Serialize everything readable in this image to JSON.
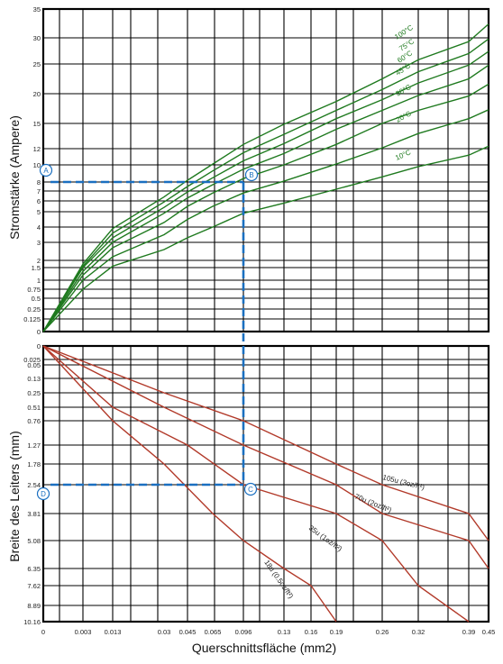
{
  "chart_data": [
    {
      "type": "line",
      "panel": "top",
      "ylabel": "Stromstärke (Ampere)",
      "y_ticks": [
        "35",
        "30",
        "25",
        "20",
        "15",
        "12",
        "10",
        "8",
        "7",
        "6",
        "5",
        "4",
        "3",
        "2",
        "1.5",
        "1",
        "0.75",
        "0.5",
        "0.25",
        "0.125",
        "0"
      ],
      "x_ticks": [
        "0",
        "0.003",
        "0.013",
        "0.03",
        "0.045",
        "0.065",
        "0.096",
        "0.13",
        "0.19",
        "0.26",
        "0.32",
        "0.39",
        "0.45"
      ],
      "series": [
        {
          "name": "10°C",
          "color": "#1f7a1f",
          "points": [
            [
              0,
              0
            ],
            [
              0.003,
              0.75
            ],
            [
              0.013,
              1.6
            ],
            [
              0.03,
              2.6
            ],
            [
              0.045,
              3.3
            ],
            [
              0.065,
              4.0
            ],
            [
              0.096,
              4.9
            ],
            [
              0.13,
              5.8
            ],
            [
              0.19,
              7.2
            ],
            [
              0.26,
              8.6
            ],
            [
              0.32,
              9.8
            ],
            [
              0.39,
              11.2
            ],
            [
              0.45,
              12.3
            ]
          ]
        },
        {
          "name": "20°C",
          "color": "#1f7a1f",
          "points": [
            [
              0,
              0
            ],
            [
              0.003,
              1.0
            ],
            [
              0.013,
              2.2
            ],
            [
              0.03,
              3.5
            ],
            [
              0.045,
              4.5
            ],
            [
              0.065,
              5.5
            ],
            [
              0.096,
              6.8
            ],
            [
              0.13,
              8.1
            ],
            [
              0.19,
              10.1
            ],
            [
              0.26,
              12.1
            ],
            [
              0.32,
              13.8
            ],
            [
              0.39,
              15.8
            ],
            [
              0.45,
              17.3
            ]
          ]
        },
        {
          "name": "30°C",
          "color": "#1f7a1f",
          "points": [
            [
              0,
              0
            ],
            [
              0.003,
              1.2
            ],
            [
              0.013,
              2.7
            ],
            [
              0.03,
              4.3
            ],
            [
              0.045,
              5.5
            ],
            [
              0.065,
              6.8
            ],
            [
              0.096,
              8.4
            ],
            [
              0.13,
              10.0
            ],
            [
              0.19,
              12.5
            ],
            [
              0.26,
              15.0
            ],
            [
              0.32,
              17.2
            ],
            [
              0.39,
              19.6
            ],
            [
              0.45,
              21.6
            ]
          ]
        },
        {
          "name": "45°C",
          "color": "#1f7a1f",
          "points": [
            [
              0,
              0
            ],
            [
              0.003,
              1.35
            ],
            [
              0.013,
              3.0
            ],
            [
              0.03,
              4.9
            ],
            [
              0.045,
              6.3
            ],
            [
              0.065,
              7.7
            ],
            [
              0.096,
              9.5
            ],
            [
              0.13,
              11.4
            ],
            [
              0.19,
              14.3
            ],
            [
              0.26,
              17.2
            ],
            [
              0.32,
              19.7
            ],
            [
              0.39,
              22.5
            ],
            [
              0.45,
              24.8
            ]
          ]
        },
        {
          "name": "60°C",
          "color": "#1f7a1f",
          "points": [
            [
              0,
              0
            ],
            [
              0.003,
              1.5
            ],
            [
              0.013,
              3.3
            ],
            [
              0.03,
              5.4
            ],
            [
              0.045,
              6.9
            ],
            [
              0.065,
              8.5
            ],
            [
              0.096,
              10.5
            ],
            [
              0.13,
              12.6
            ],
            [
              0.19,
              15.8
            ],
            [
              0.26,
              19.0
            ],
            [
              0.32,
              21.8
            ],
            [
              0.39,
              24.8
            ],
            [
              0.45,
              27.4
            ]
          ]
        },
        {
          "name": "75°C",
          "color": "#1f7a1f",
          "points": [
            [
              0,
              0
            ],
            [
              0.003,
              1.6
            ],
            [
              0.013,
              3.6
            ],
            [
              0.03,
              5.9
            ],
            [
              0.045,
              7.5
            ],
            [
              0.065,
              9.3
            ],
            [
              0.096,
              11.5
            ],
            [
              0.13,
              13.7
            ],
            [
              0.19,
              17.2
            ],
            [
              0.26,
              20.7
            ],
            [
              0.32,
              23.7
            ],
            [
              0.39,
              27.0
            ],
            [
              0.45,
              29.8
            ]
          ]
        },
        {
          "name": "100°C",
          "color": "#1f7a1f",
          "points": [
            [
              0,
              0
            ],
            [
              0.003,
              1.75
            ],
            [
              0.013,
              3.9
            ],
            [
              0.03,
              6.4
            ],
            [
              0.045,
              8.2
            ],
            [
              0.065,
              10.1
            ],
            [
              0.096,
              12.5
            ],
            [
              0.13,
              14.9
            ],
            [
              0.19,
              18.7
            ],
            [
              0.26,
              22.5
            ],
            [
              0.32,
              25.8
            ],
            [
              0.39,
              29.3
            ],
            [
              0.45,
              32.4
            ]
          ]
        }
      ],
      "curve_labels": [
        "100°C",
        "75°C",
        "60°C",
        "45°C",
        "30°C",
        "20°C",
        "10°C"
      ]
    },
    {
      "type": "line",
      "panel": "bottom",
      "xlabel": "Querschnittsfläche (mm2)",
      "ylabel": "Breite des Leiters (mm)",
      "y_ticks": [
        "0",
        "0.025",
        "0.05",
        "0.13",
        "0.25",
        "0.51",
        "0.76",
        "1.27",
        "1.78",
        "2.54",
        "3.81",
        "5.08",
        "6.35",
        "7.62",
        "8.89",
        "10.16"
      ],
      "x_ticks": [
        "0",
        "0.003",
        "0.013",
        "0.03",
        "0.045",
        "0.065",
        "0.096",
        "0.13",
        "0.16",
        "0.19",
        "0.26",
        "0.32",
        "0.39",
        "0.45"
      ],
      "series": [
        {
          "name": "18u (0.5oz/ft²)",
          "color": "#b23a2a",
          "points": [
            [
              0,
              0
            ],
            [
              0.013,
              0.76
            ],
            [
              0.03,
              1.78
            ],
            [
              0.065,
              3.81
            ],
            [
              0.096,
              5.08
            ],
            [
              0.13,
              6.35
            ],
            [
              0.16,
              7.62
            ],
            [
              0.19,
              10.16
            ]
          ]
        },
        {
          "name": "35u (1oz/ft²)",
          "color": "#b23a2a",
          "points": [
            [
              0,
              0
            ],
            [
              0.013,
              0.51
            ],
            [
              0.045,
              1.27
            ],
            [
              0.096,
              2.54
            ],
            [
              0.19,
              3.81
            ],
            [
              0.26,
              5.08
            ],
            [
              0.32,
              7.62
            ],
            [
              0.39,
              10.16
            ]
          ]
        },
        {
          "name": "70u (2oz/ft²)",
          "color": "#b23a2a",
          "points": [
            [
              0,
              0
            ],
            [
              0.03,
              0.51
            ],
            [
              0.096,
              1.27
            ],
            [
              0.19,
              2.54
            ],
            [
              0.26,
              3.81
            ],
            [
              0.39,
              5.08
            ],
            [
              0.45,
              6.35
            ]
          ]
        },
        {
          "name": "105u (3oz/ft²)",
          "color": "#b23a2a",
          "points": [
            [
              0,
              0
            ],
            [
              0.03,
              0.25
            ],
            [
              0.096,
              0.76
            ],
            [
              0.19,
              1.78
            ],
            [
              0.26,
              2.54
            ],
            [
              0.39,
              3.81
            ],
            [
              0.45,
              5.08
            ]
          ]
        }
      ]
    }
  ],
  "markers": {
    "a": "A",
    "b": "B",
    "c": "C",
    "d": "D",
    "color": "#1a6fc0"
  }
}
